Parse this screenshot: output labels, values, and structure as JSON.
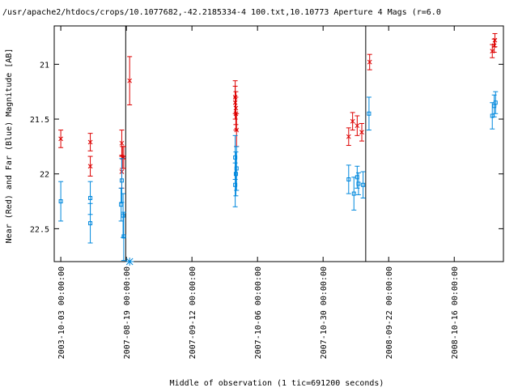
{
  "title": "/usr/apache2/htdocs/crops/10.1077682,-42.2185334-4 100.txt,10.10773    Aperture 4 Mags (r=6.0",
  "chart_data": {
    "type": "scatter",
    "title": "/usr/apache2/htdocs/crops/10.1077682,-42.2185334-4 100.txt,10.10773    Aperture 4 Mags (r=6.0",
    "xlabel": "Middle of observation (1 tic=691200 seconds)",
    "ylabel": "Near (Red) and Far (Blue) Magnitude [AB]",
    "x_tick_labels": [
      "2003-10-03 00:00:00",
      "2007-08-19 00:00:00",
      "2007-09-12 00:00:00",
      "2007-10-06 00:00:00",
      "2007-10-30 00:00:00",
      "2008-09-22 00:00:00",
      "2008-10-16 00:00:00"
    ],
    "x_tick_positions": [
      0,
      1,
      2,
      3,
      4,
      5,
      6
    ],
    "xlim": [
      -0.1,
      6.75
    ],
    "y_ticks": [
      21,
      21.5,
      22,
      22.5
    ],
    "ylim": [
      22.8,
      20.65
    ],
    "y_inverted": true,
    "segment_breaks": [
      0.99,
      4.65
    ],
    "grid": false,
    "series": [
      {
        "color": "#dd0000",
        "marker": "x",
        "points": [
          {
            "x": 0.0,
            "y": 21.68,
            "err": 0.08
          },
          {
            "x": 0.45,
            "y": 21.71,
            "err": 0.08
          },
          {
            "x": 0.45,
            "y": 21.93,
            "err": 0.09
          },
          {
            "x": 0.93,
            "y": 21.72,
            "err": 0.12
          },
          {
            "x": 0.93,
            "y": 21.98,
            "err": 0.15
          },
          {
            "x": 0.94,
            "y": 21.85,
            "err": 0.1
          },
          {
            "x": 0.96,
            "y": 21.85,
            "err": 0.1
          },
          {
            "x": 1.05,
            "y": 21.15,
            "err": 0.22
          },
          {
            "x": 2.66,
            "y": 21.3,
            "err": 0.15
          },
          {
            "x": 2.66,
            "y": 21.35,
            "err": 0.15
          },
          {
            "x": 2.67,
            "y": 21.4,
            "err": 0.15
          },
          {
            "x": 2.67,
            "y": 21.45,
            "err": 0.15
          },
          {
            "x": 2.68,
            "y": 21.6,
            "err": 0.15
          },
          {
            "x": 4.39,
            "y": 21.66,
            "err": 0.08
          },
          {
            "x": 4.45,
            "y": 21.52,
            "err": 0.08
          },
          {
            "x": 4.52,
            "y": 21.56,
            "err": 0.09
          },
          {
            "x": 4.59,
            "y": 21.62,
            "err": 0.08
          },
          {
            "x": 4.71,
            "y": 20.98,
            "err": 0.07
          },
          {
            "x": 6.58,
            "y": 20.88,
            "err": 0.06
          },
          {
            "x": 6.61,
            "y": 20.83,
            "err": 0.06
          },
          {
            "x": 6.62,
            "y": 20.78,
            "err": 0.06
          }
        ]
      },
      {
        "color": "#0088dd",
        "marker": "square",
        "points": [
          {
            "x": 0.0,
            "y": 22.25,
            "err": 0.18
          },
          {
            "x": 0.45,
            "y": 22.22,
            "err": 0.15
          },
          {
            "x": 0.45,
            "y": 22.45,
            "err": 0.18
          },
          {
            "x": 0.92,
            "y": 22.28,
            "err": 0.15
          },
          {
            "x": 0.93,
            "y": 22.06,
            "err": 0.2
          },
          {
            "x": 0.95,
            "y": 22.38,
            "err": 0.2
          },
          {
            "x": 0.96,
            "y": 22.57,
            "err": 0.22
          },
          {
            "x": 2.66,
            "y": 21.85,
            "err": 0.2
          },
          {
            "x": 2.66,
            "y": 22.1,
            "err": 0.2
          },
          {
            "x": 2.67,
            "y": 22.0,
            "err": 0.2
          },
          {
            "x": 2.68,
            "y": 21.95,
            "err": 0.2
          },
          {
            "x": 4.39,
            "y": 22.05,
            "err": 0.13
          },
          {
            "x": 4.47,
            "y": 22.18,
            "err": 0.15
          },
          {
            "x": 4.52,
            "y": 22.03,
            "err": 0.1
          },
          {
            "x": 4.54,
            "y": 22.09,
            "err": 0.1
          },
          {
            "x": 4.61,
            "y": 22.1,
            "err": 0.12
          },
          {
            "x": 4.7,
            "y": 21.45,
            "err": 0.15
          },
          {
            "x": 6.58,
            "y": 21.47,
            "err": 0.12
          },
          {
            "x": 6.61,
            "y": 21.38,
            "err": 0.1
          },
          {
            "x": 6.63,
            "y": 21.35,
            "err": 0.1
          }
        ]
      }
    ],
    "extra_marker": {
      "x": 1.05,
      "y": 22.8,
      "color": "#0088dd",
      "marker": "asterisk"
    }
  }
}
